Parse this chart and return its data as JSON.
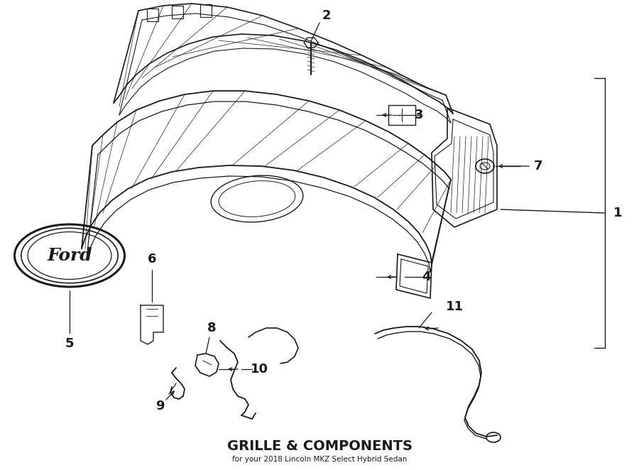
{
  "title": "GRILLE & COMPONENTS",
  "subtitle": "for your 2018 Lincoln MKZ Select Hybrid Sedan",
  "background_color": "#ffffff",
  "line_color": "#1a1a1a",
  "label_color": "#1a1a1a",
  "fig_width": 9.0,
  "fig_height": 6.62,
  "dpi": 100
}
